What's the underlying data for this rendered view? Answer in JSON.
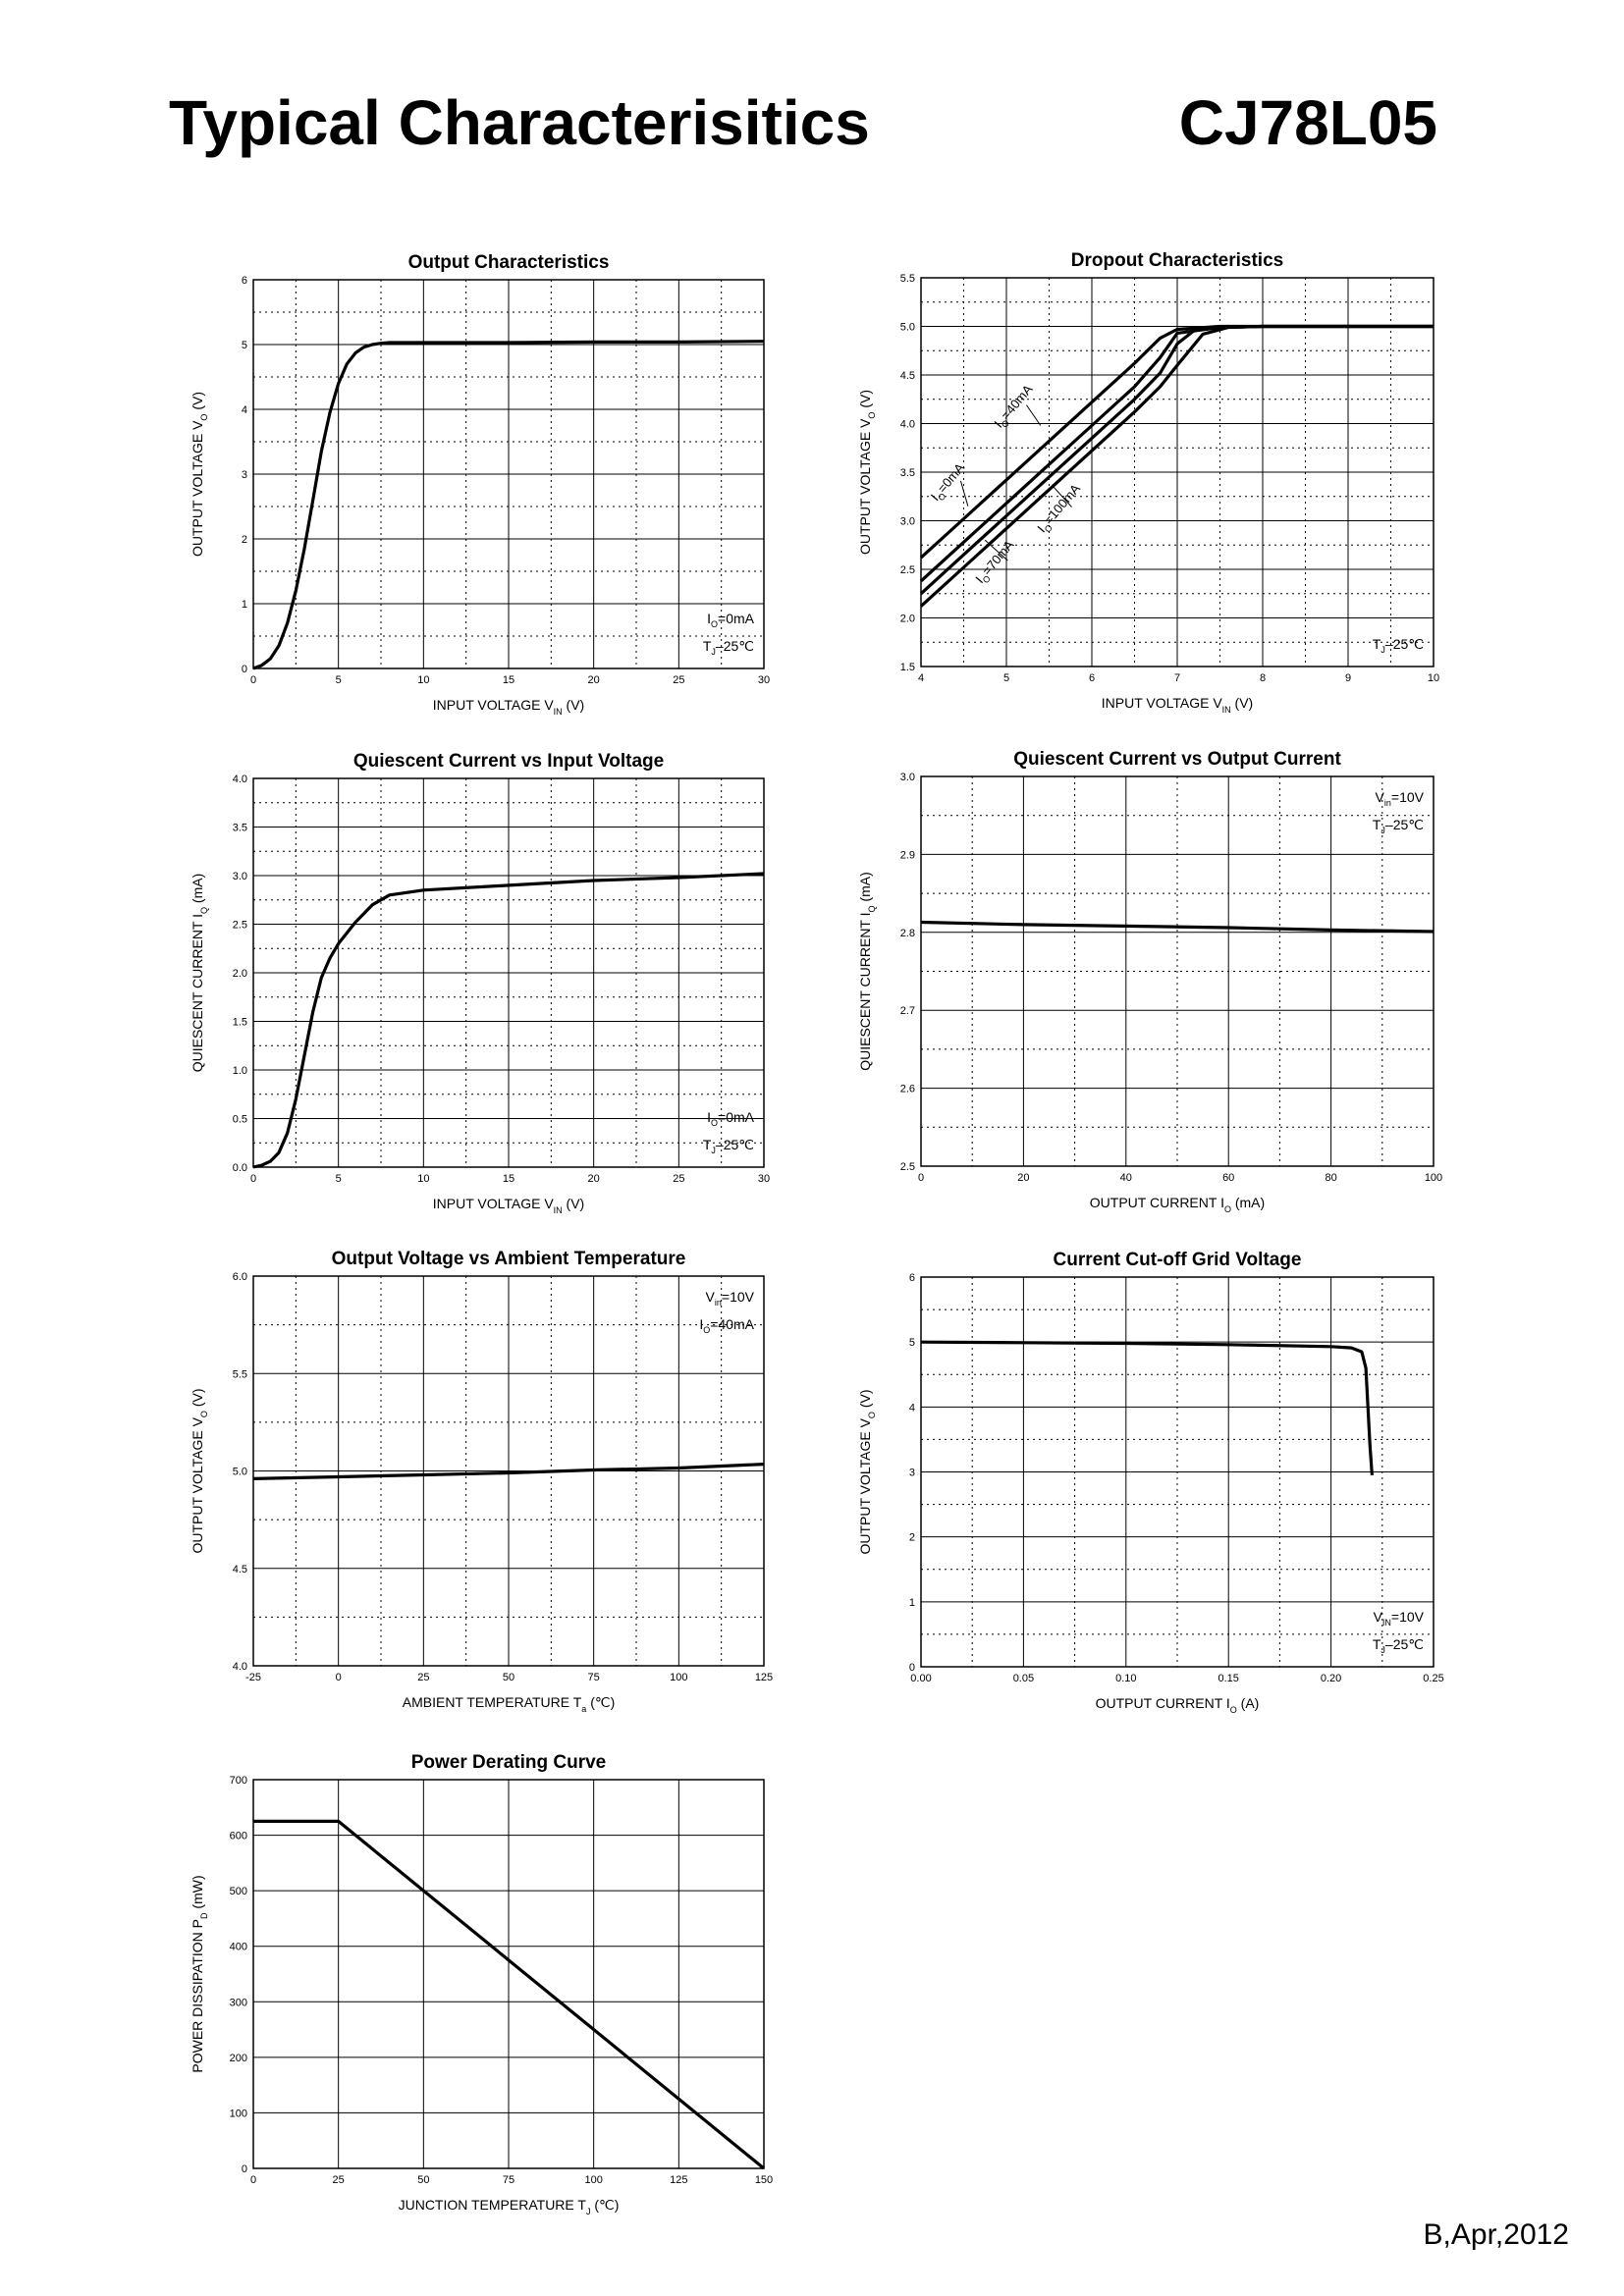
{
  "page": {
    "title": "Typical Characterisitics",
    "part_number": "CJ78L05",
    "revision": "B,Apr,2012"
  },
  "colors": {
    "line": "#000000",
    "grid": "#000000",
    "background": "#ffffff"
  },
  "chart_data": [
    {
      "id": "output-characteristics",
      "type": "line",
      "title": "Output  Characteristics",
      "xlabel": {
        "main": "INPUT VOLTAGE",
        "sym": "V",
        "sub": "IN",
        "unit": "(V)"
      },
      "ylabel": {
        "main": "OUTPUT VOLTAGE",
        "sym": "V",
        "sub": "O",
        "unit": "(V)"
      },
      "xlim": [
        0,
        30
      ],
      "ylim": [
        0,
        6
      ],
      "xticks": [
        0,
        5,
        10,
        15,
        20,
        25,
        30
      ],
      "yticks": [
        0,
        1,
        2,
        3,
        4,
        5,
        6
      ],
      "xtick_labels": [
        "0",
        "5",
        "10",
        "15",
        "20",
        "25",
        "30"
      ],
      "ytick_labels": [
        "0",
        "1",
        "2",
        "3",
        "4",
        "5",
        "6"
      ],
      "grid": true,
      "annotations": [
        {
          "sym": "I",
          "sub": "O",
          "rest": "=0mA",
          "position": "bottom-right",
          "row": 0
        },
        {
          "sym": "T",
          "sub": "J",
          "rest": "–25℃",
          "position": "bottom-right",
          "row": 1
        }
      ],
      "series": [
        {
          "x": [
            0,
            0.5,
            1,
            1.5,
            2,
            2.5,
            3,
            3.5,
            4,
            4.5,
            5,
            5.5,
            6,
            6.5,
            7,
            7.5,
            8,
            9,
            10,
            15,
            20,
            25,
            30
          ],
          "y": [
            0,
            0.05,
            0.15,
            0.35,
            0.7,
            1.2,
            1.85,
            2.6,
            3.35,
            3.95,
            4.4,
            4.7,
            4.87,
            4.96,
            5.0,
            5.02,
            5.03,
            5.03,
            5.03,
            5.03,
            5.04,
            5.04,
            5.05
          ]
        }
      ]
    },
    {
      "id": "dropout-characteristics",
      "type": "line",
      "title": "Dropout Characteristics",
      "xlabel": {
        "main": "INPUT VOLTAGE",
        "sym": "V",
        "sub": "IN",
        "unit": "(V)"
      },
      "ylabel": {
        "main": "OUTPUT VOLTAGE",
        "sym": "V",
        "sub": "O",
        "unit": "(V)"
      },
      "xlim": [
        4,
        10
      ],
      "ylim": [
        1.5,
        5.5
      ],
      "xticks": [
        4,
        5,
        6,
        7,
        8,
        9,
        10
      ],
      "yticks": [
        1.5,
        2.0,
        2.5,
        3.0,
        3.5,
        4.0,
        4.5,
        5.0,
        5.5
      ],
      "xtick_labels": [
        "4",
        "5",
        "6",
        "7",
        "8",
        "9",
        "10"
      ],
      "ytick_labels": [
        "1.5",
        "2.0",
        "2.5",
        "3.0",
        "3.5",
        "4.0",
        "4.5",
        "5.0",
        "5.5"
      ],
      "grid": true,
      "annotations": [
        {
          "sym": "T",
          "sub": "J",
          "rest": "–25℃",
          "position": "bottom-right",
          "row": 0
        }
      ],
      "series": [
        {
          "name_sym": "I",
          "name_sub": "O",
          "name_rest": "=0mA",
          "x": [
            4,
            4.5,
            5,
            5.5,
            6,
            6.5,
            6.8,
            7,
            7.5,
            8,
            9,
            10
          ],
          "y": [
            2.62,
            3.02,
            3.42,
            3.82,
            4.22,
            4.62,
            4.88,
            4.97,
            5.0,
            5.0,
            5.0,
            5.0
          ]
        },
        {
          "name_sym": "I",
          "name_sub": "O",
          "name_rest": "=40mA",
          "x": [
            4,
            4.5,
            5,
            5.5,
            6,
            6.5,
            6.8,
            7,
            7.5,
            8,
            9,
            10
          ],
          "y": [
            2.38,
            2.78,
            3.18,
            3.58,
            3.98,
            4.38,
            4.68,
            4.93,
            4.99,
            5.0,
            5.0,
            5.0
          ]
        },
        {
          "name_sym": "I",
          "name_sub": "O",
          "name_rest": "=70mA",
          "x": [
            4,
            4.5,
            5,
            5.5,
            6,
            6.5,
            6.8,
            7,
            7.2,
            7.5,
            8,
            9,
            10
          ],
          "y": [
            2.25,
            2.65,
            3.05,
            3.45,
            3.85,
            4.25,
            4.52,
            4.82,
            4.96,
            4.99,
            5.0,
            5.0,
            5.0
          ]
        },
        {
          "name_sym": "I",
          "name_sub": "O",
          "name_rest": "=100mA",
          "x": [
            4,
            4.5,
            5,
            5.5,
            6,
            6.5,
            6.8,
            7,
            7.3,
            7.6,
            8,
            9,
            10
          ],
          "y": [
            2.12,
            2.52,
            2.92,
            3.32,
            3.72,
            4.12,
            4.38,
            4.6,
            4.92,
            4.99,
            5.0,
            5.0,
            5.0
          ]
        }
      ]
    },
    {
      "id": "quiescent-vs-input",
      "type": "line",
      "title": "Quiescent Current vs Input Voltage",
      "xlabel": {
        "main": "INPUT VOLTAGE",
        "sym": "V",
        "sub": "IN",
        "unit": "(V)"
      },
      "ylabel": {
        "main": "QUIESCENT CURRENT",
        "sym": "I",
        "sub": "Q",
        "unit": "(mA)"
      },
      "xlim": [
        0,
        30
      ],
      "ylim": [
        0,
        4
      ],
      "xticks": [
        0,
        5,
        10,
        15,
        20,
        25,
        30
      ],
      "yticks": [
        0,
        0.5,
        1.0,
        1.5,
        2.0,
        2.5,
        3.0,
        3.5,
        4.0
      ],
      "xtick_labels": [
        "0",
        "5",
        "10",
        "15",
        "20",
        "25",
        "30"
      ],
      "ytick_labels": [
        "0.0",
        "0.5",
        "1.0",
        "1.5",
        "2.0",
        "2.5",
        "3.0",
        "3.5",
        "4.0"
      ],
      "grid": true,
      "annotations": [
        {
          "sym": "I",
          "sub": "O",
          "rest": "=0mA",
          "position": "bottom-right",
          "row": 0
        },
        {
          "sym": "T",
          "sub": "J",
          "rest": "–25℃",
          "position": "bottom-right",
          "row": 1
        }
      ],
      "series": [
        {
          "x": [
            0,
            0.5,
            1,
            1.5,
            2,
            2.5,
            3,
            3.5,
            4,
            4.5,
            5,
            6,
            7,
            8,
            10,
            15,
            20,
            25,
            30
          ],
          "y": [
            0,
            0.02,
            0.06,
            0.15,
            0.35,
            0.7,
            1.15,
            1.6,
            1.95,
            2.15,
            2.3,
            2.52,
            2.7,
            2.8,
            2.85,
            2.9,
            2.95,
            2.98,
            3.02
          ]
        }
      ]
    },
    {
      "id": "quiescent-vs-output",
      "type": "line",
      "title": "Quiescent Current vs Output Current",
      "xlabel": {
        "main": "OUTPUT CURRENT",
        "sym": "I",
        "sub": "O",
        "unit": "(mA)"
      },
      "ylabel": {
        "main": "QUIESCENT CURRENT",
        "sym": "I",
        "sub": "Q",
        "unit": "(mA)"
      },
      "xlim": [
        0,
        100
      ],
      "ylim": [
        2.5,
        3.0
      ],
      "xticks": [
        0,
        20,
        40,
        60,
        80,
        100
      ],
      "yticks": [
        2.5,
        2.6,
        2.7,
        2.8,
        2.9,
        3.0
      ],
      "xtick_labels": [
        "0",
        "20",
        "40",
        "60",
        "80",
        "100"
      ],
      "ytick_labels": [
        "2.5",
        "2.6",
        "2.7",
        "2.8",
        "2.9",
        "3.0"
      ],
      "grid": true,
      "annotations": [
        {
          "sym": "V",
          "sub": "in",
          "rest": "=10V",
          "position": "top-right",
          "row": 0
        },
        {
          "sym": "T",
          "sub": "J",
          "rest": "–25℃",
          "position": "top-right",
          "row": 1
        }
      ],
      "series": [
        {
          "x": [
            0,
            20,
            40,
            60,
            80,
            100
          ],
          "y": [
            2.813,
            2.81,
            2.808,
            2.806,
            2.803,
            2.801
          ]
        }
      ]
    },
    {
      "id": "output-vs-temperature",
      "type": "line",
      "title": "Output Voltage vs Ambient Temperature",
      "xlabel": {
        "main": "AMBIENT TEMPERATURE",
        "sym": "T",
        "sub": "a",
        "unit": "(℃)"
      },
      "ylabel": {
        "main": "OUTPUT VOLTAGE",
        "sym": "V",
        "sub": "O",
        "unit": "(V)"
      },
      "xlim": [
        -25,
        125
      ],
      "ylim": [
        4.0,
        6.0
      ],
      "xticks": [
        -25,
        0,
        25,
        50,
        75,
        100,
        125
      ],
      "yticks": [
        4.0,
        4.5,
        5.0,
        5.5,
        6.0
      ],
      "xtick_labels": [
        "-25",
        "0",
        "25",
        "50",
        "75",
        "100",
        "125"
      ],
      "ytick_labels": [
        "4.0",
        "4.5",
        "5.0",
        "5.5",
        "6.0"
      ],
      "grid": true,
      "annotations": [
        {
          "sym": "V",
          "sub": "in",
          "rest": "=10V",
          "position": "top-right",
          "row": 0
        },
        {
          "sym": "I",
          "sub": "O",
          "rest": "=40mA",
          "position": "top-right",
          "row": 1
        }
      ],
      "series": [
        {
          "x": [
            -25,
            0,
            25,
            50,
            75,
            100,
            125
          ],
          "y": [
            4.96,
            4.97,
            4.98,
            4.99,
            5.005,
            5.015,
            5.035
          ]
        }
      ]
    },
    {
      "id": "current-cutoff",
      "type": "line",
      "title": "Current  Cut-off Grid Voltage",
      "xlabel": {
        "main": "OUTPUT CURRENT",
        "sym": "I",
        "sub": "O",
        "unit": "(A)"
      },
      "ylabel": {
        "main": "OUTPUT VOLTAGE",
        "sym": "V",
        "sub": "O",
        "unit": "(V)"
      },
      "xlim": [
        0,
        0.25
      ],
      "ylim": [
        0,
        6
      ],
      "xticks": [
        0,
        0.05,
        0.1,
        0.15,
        0.2,
        0.25
      ],
      "yticks": [
        0,
        1,
        2,
        3,
        4,
        5,
        6
      ],
      "xtick_labels": [
        "0.00",
        "0.05",
        "0.10",
        "0.15",
        "0.20",
        "0.25"
      ],
      "ytick_labels": [
        "0",
        "1",
        "2",
        "3",
        "4",
        "5",
        "6"
      ],
      "grid": true,
      "annotations": [
        {
          "sym": "V",
          "sub": "IN",
          "rest": "=10V",
          "position": "bottom-right",
          "row": 0
        },
        {
          "sym": "T",
          "sub": "J",
          "rest": "–25℃",
          "position": "bottom-right",
          "row": 1
        }
      ],
      "series": [
        {
          "x": [
            0,
            0.05,
            0.1,
            0.15,
            0.2,
            0.21,
            0.215,
            0.217,
            0.218,
            0.219,
            0.22
          ],
          "y": [
            5.0,
            4.99,
            4.98,
            4.96,
            4.93,
            4.91,
            4.85,
            4.6,
            4.0,
            3.4,
            2.95
          ]
        }
      ]
    },
    {
      "id": "power-derating",
      "type": "line",
      "title": "Power Derating Curve",
      "xlabel": {
        "main": "JUNCTION TEMPERATURE",
        "sym": "T",
        "sub": "J",
        "unit": "(℃)"
      },
      "ylabel": {
        "main": "POWER DISSIPATION",
        "sym": "P",
        "sub": "D",
        "unit": "(mW)"
      },
      "xlim": [
        0,
        150
      ],
      "ylim": [
        0,
        700
      ],
      "xticks": [
        0,
        25,
        50,
        75,
        100,
        125,
        150
      ],
      "yticks": [
        0,
        100,
        200,
        300,
        400,
        500,
        600,
        700
      ],
      "xtick_labels": [
        "0",
        "25",
        "50",
        "75",
        "100",
        "125",
        "150"
      ],
      "ytick_labels": [
        "0",
        "100",
        "200",
        "300",
        "400",
        "500",
        "600",
        "700"
      ],
      "grid": true,
      "minor_grid": false,
      "annotations": [],
      "series": [
        {
          "x": [
            0,
            25,
            150
          ],
          "y": [
            625,
            625,
            0
          ]
        }
      ]
    }
  ]
}
